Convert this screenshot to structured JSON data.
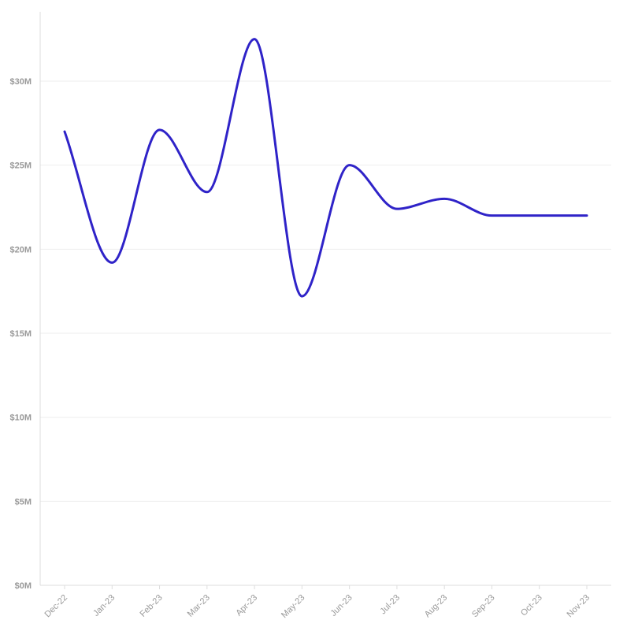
{
  "chart_data": {
    "type": "line",
    "title": "",
    "xlabel": "",
    "ylabel": "",
    "categories": [
      "Dec-22",
      "Jan-23",
      "Feb-23",
      "Mar-23",
      "Apr-23",
      "May-23",
      "Jun-23",
      "Jul-23",
      "Aug-23",
      "Sep-23",
      "Oct-23",
      "Nov-23"
    ],
    "series": [
      {
        "values": [
          27000000,
          19200000,
          27100000,
          23400000,
          32500000,
          17200000,
          25000000,
          22400000,
          23000000,
          22000000,
          22000000,
          22000000
        ],
        "color": "#2f23c8"
      }
    ],
    "y_ticks": [
      {
        "value": 0,
        "label": "$0M"
      },
      {
        "value": 5000000,
        "label": "$5M"
      },
      {
        "value": 10000000,
        "label": "$10M"
      },
      {
        "value": 15000000,
        "label": "$15M"
      },
      {
        "value": 20000000,
        "label": "$20M"
      },
      {
        "value": 25000000,
        "label": "$25M"
      },
      {
        "value": 30000000,
        "label": "$30M"
      }
    ],
    "ylim": [
      0,
      34000000
    ],
    "grid": true,
    "legend": "none",
    "colors": {
      "line": "#2f23c8",
      "grid": "#eeeeee",
      "axis": "#dddddd",
      "tick_text": "#9a9a9a"
    }
  }
}
